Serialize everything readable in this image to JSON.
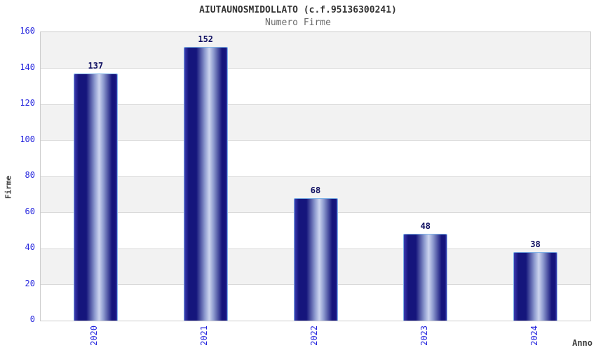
{
  "chart_data": {
    "type": "bar",
    "title": "AIUTAUNOSMIDOLLATO (c.f.95136300241)",
    "subtitle": "Numero Firme",
    "categories": [
      "2020",
      "2021",
      "2022",
      "2023",
      "2024"
    ],
    "values": [
      137,
      152,
      68,
      48,
      38
    ],
    "xlabel": "Anno",
    "ylabel": "Firme",
    "ylim": [
      0,
      160
    ],
    "yticks": [
      0,
      20,
      40,
      60,
      80,
      100,
      120,
      140,
      160
    ],
    "grid": "horizontal-bands",
    "legend": "none"
  },
  "colors": {
    "background": "#ffffff",
    "title": "#333333",
    "subtitle": "#6b6b6b",
    "axis_tick_label": "#2424dd",
    "axis_title": "#3d3d3d",
    "value_label": "#0e0e60",
    "bar_edge_light": "#3c3cb0",
    "bar_dark": "#15157c",
    "bar_mid": "#8f9cd0",
    "bar_highlight": "#ccd4ee",
    "bar_border": "#7fb4e8",
    "band_fill": "#f2f2f2",
    "grid_line": "#d9d9d9",
    "plot_border": "#cccccc"
  }
}
